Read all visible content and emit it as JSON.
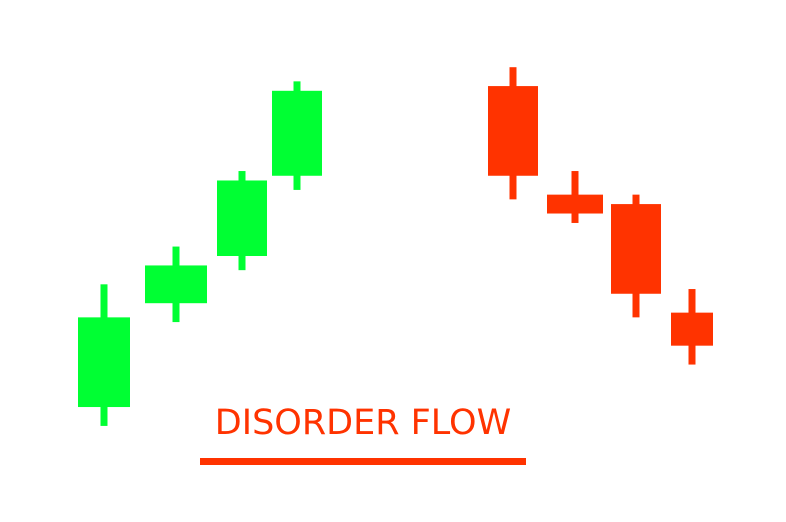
{
  "caption": {
    "text": "DISORDER FLOW",
    "color": "#FF3300"
  },
  "colors": {
    "bullish": "#00FF33",
    "bearish": "#FF3300",
    "background": "#FFFFFF"
  },
  "chart_data": {
    "type": "candlestick",
    "title": "",
    "xlabel": "",
    "ylabel": "",
    "grid": false,
    "ylim": [
      0,
      100
    ],
    "candles": [
      {
        "open": 18,
        "high": 44,
        "low": 14,
        "close": 37,
        "direction": "up"
      },
      {
        "open": 40,
        "high": 52,
        "low": 36,
        "close": 48,
        "direction": "up"
      },
      {
        "open": 50,
        "high": 68,
        "low": 47,
        "close": 66,
        "direction": "up"
      },
      {
        "open": 67,
        "high": 87,
        "low": 64,
        "close": 85,
        "direction": "up"
      },
      {
        "open": 86,
        "high": 90,
        "low": 62,
        "close": 67,
        "direction": "down"
      },
      {
        "open": 63,
        "high": 68,
        "low": 57,
        "close": 59,
        "direction": "down"
      },
      {
        "open": 61,
        "high": 63,
        "low": 37,
        "close": 42,
        "direction": "down"
      },
      {
        "open": 38,
        "high": 43,
        "low": 27,
        "close": 31,
        "direction": "down"
      }
    ]
  }
}
